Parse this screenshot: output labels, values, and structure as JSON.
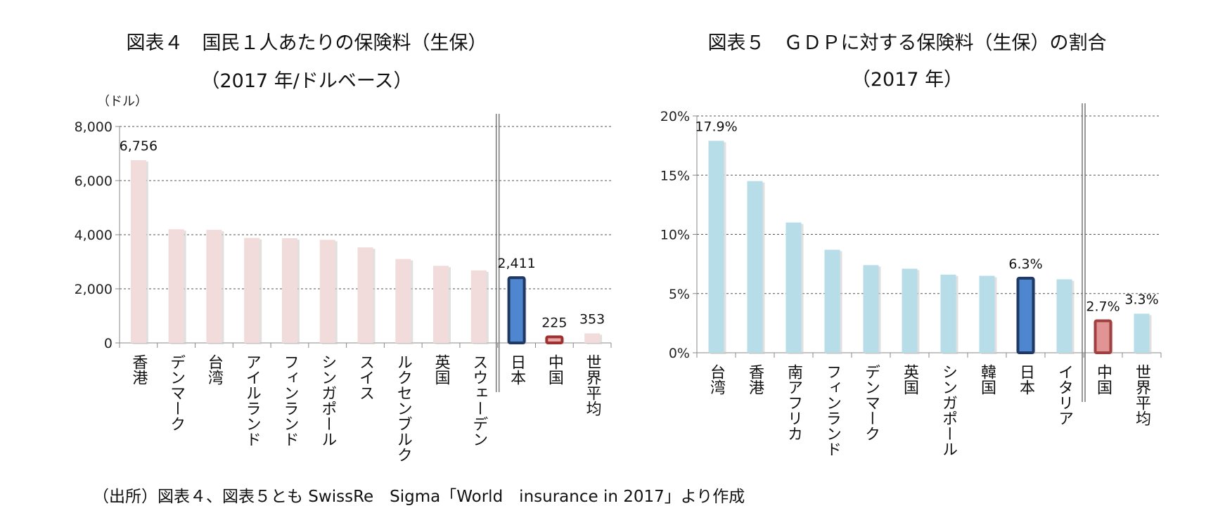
{
  "chart_data": [
    {
      "type": "bar",
      "title": "図表４　国民１人あたりの保険料（生保）",
      "subtitle": "（2017 年/ドルベース）",
      "ylabel": "（ドル）",
      "xlabel": "",
      "ylim": [
        0,
        8000
      ],
      "yticks": [
        "0",
        "2,000",
        "4,000",
        "6,000",
        "8,000"
      ],
      "grid": true,
      "categories": [
        "香港",
        "デンマーク",
        "台湾",
        "アイルランド",
        "フィンランド",
        "シンガポール",
        "スイス",
        "ルクセンブルク",
        "英国",
        "スウェーデン",
        "日本",
        "中国",
        "世界平均"
      ],
      "values": [
        6756,
        4200,
        4180,
        3880,
        3870,
        3810,
        3530,
        3100,
        2850,
        2680,
        2411,
        225,
        353
      ],
      "data_labels": {
        "0": "6,756",
        "10": "2,411",
        "11": "225",
        "12": "353"
      },
      "separator_after_index": 9,
      "colors": {
        "default": "#f2dcdb",
        "japan": "#4f86d0",
        "japan_border": "#1f3864",
        "china": "#e8a8a8",
        "china_border": "#a03030"
      },
      "highlight": {
        "japan_index": 10,
        "china_index": 11
      }
    },
    {
      "type": "bar",
      "title": "図表５　ＧＤＰに対する保険料（生保）の割合",
      "subtitle": "（2017 年）",
      "xlabel": "",
      "ylabel": "",
      "ylim": [
        0,
        20
      ],
      "yticks": [
        "0%",
        "5%",
        "10%",
        "15%",
        "20%"
      ],
      "grid": true,
      "categories": [
        "台湾",
        "香港",
        "南アフリカ",
        "フィンランド",
        "デンマーク",
        "英国",
        "シンガポール",
        "韓国",
        "日本",
        "イタリア",
        "中国",
        "世界平均"
      ],
      "values": [
        17.9,
        14.5,
        11.0,
        8.7,
        7.4,
        7.1,
        6.6,
        6.5,
        6.3,
        6.2,
        2.7,
        3.3
      ],
      "data_labels": {
        "0": "17.9%",
        "8": "6.3%",
        "10": "2.7%",
        "11": "3.3%"
      },
      "separator_after_index": 9,
      "colors": {
        "default": "#b7dde8",
        "japan": "#4f86d0",
        "japan_border": "#1f3864",
        "china": "#e09494",
        "china_border": "#a04040"
      },
      "highlight": {
        "japan_index": 8,
        "china_index": 10
      }
    }
  ],
  "footnote": "（出所）図表４、図表５とも SwissRe　Sigma「World　insurance in 2017」より作成"
}
